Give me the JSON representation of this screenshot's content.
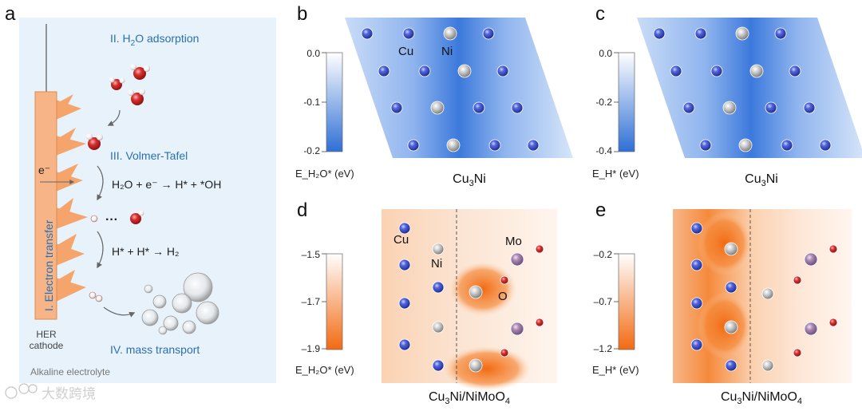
{
  "panel_labels": {
    "a": "a",
    "b": "b",
    "c": "c",
    "d": "d",
    "e": "e"
  },
  "panel_a": {
    "stage1": "I. Electron transfer",
    "stage2_prefix": "II. H",
    "stage2_sub": "2",
    "stage2_suffix": "O adsorption",
    "stage3": "III. Volmer-Tafel",
    "stage4": "IV. mass transport",
    "electron": "e⁻",
    "eq1": "H₂O + e⁻ → H* + *OH",
    "eq2": "H* + H* → H₂",
    "dots": "···",
    "cathode_line1": "HER",
    "cathode_line2": "cathode",
    "electrolyte": "Alkaline electrolyte"
  },
  "panel_b": {
    "ticks": [
      "0.0",
      "-0.1",
      "-0.2"
    ],
    "cbar_label": "E_H₂O* (eV)",
    "formula_main": "Cu",
    "formula_sub": "3",
    "formula_end": "Ni",
    "atom_cu": "Cu",
    "atom_ni": "Ni"
  },
  "panel_c": {
    "ticks": [
      "0.0",
      "-0.2",
      "-0.4"
    ],
    "cbar_label": "E_H* (eV)",
    "formula_main": "Cu",
    "formula_sub": "3",
    "formula_end": "Ni"
  },
  "panel_d": {
    "ticks": [
      "–1.5",
      "–1.7",
      "–1.9"
    ],
    "cbar_label": "E_H₂O* (eV)",
    "formula_a": "Cu",
    "formula_b": "3",
    "formula_c": "Ni/NiMoO",
    "formula_d": "4",
    "atom_cu": "Cu",
    "atom_ni": "Ni",
    "atom_mo": "Mo",
    "atom_o": "O"
  },
  "panel_e": {
    "ticks": [
      "–0.2",
      "–0.7",
      "–1.2"
    ],
    "cbar_label": "E_H* (eV)",
    "formula_a": "Cu",
    "formula_b": "3",
    "formula_c": "Ni/NiMoO",
    "formula_d": "4"
  },
  "colors": {
    "blue_map": "#2f6fd6",
    "orange_map": "#f26a12",
    "cu_atom": "#3b4fc7",
    "ni_atom": "#bfbfbf",
    "mo_atom": "#a47fae",
    "o_atom": "#d22a2a",
    "cathode": "#f6b487",
    "text_blue": "#2a6fb0"
  },
  "watermark": "大数跨境"
}
